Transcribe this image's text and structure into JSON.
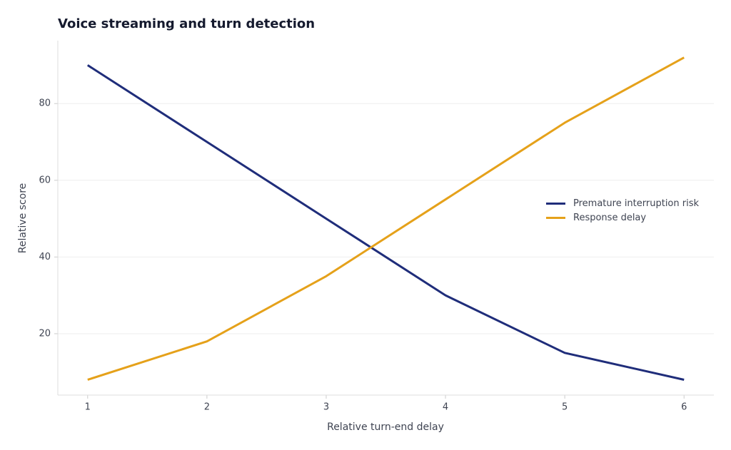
{
  "chart_data": {
    "type": "line",
    "title": "Voice streaming and turn detection",
    "x_label": "Relative turn-end delay",
    "y_label": "Relative score",
    "x": [
      1,
      2,
      3,
      4,
      5,
      6
    ],
    "series": [
      {
        "name": "Premature interruption risk",
        "color": "#1f2d7a",
        "values": [
          90,
          70,
          50,
          30,
          15,
          8
        ]
      },
      {
        "name": "Response delay",
        "color": "#e5a11a",
        "values": [
          8,
          18,
          35,
          55,
          75,
          92
        ]
      }
    ],
    "xlim": [
      0.75,
      6.25
    ],
    "ylim": [
      4,
      96.4
    ],
    "xticks": [
      1,
      2,
      3,
      4,
      5,
      6
    ],
    "yticks": [
      20,
      40,
      60,
      80
    ],
    "grid": true,
    "legend": "center right"
  }
}
